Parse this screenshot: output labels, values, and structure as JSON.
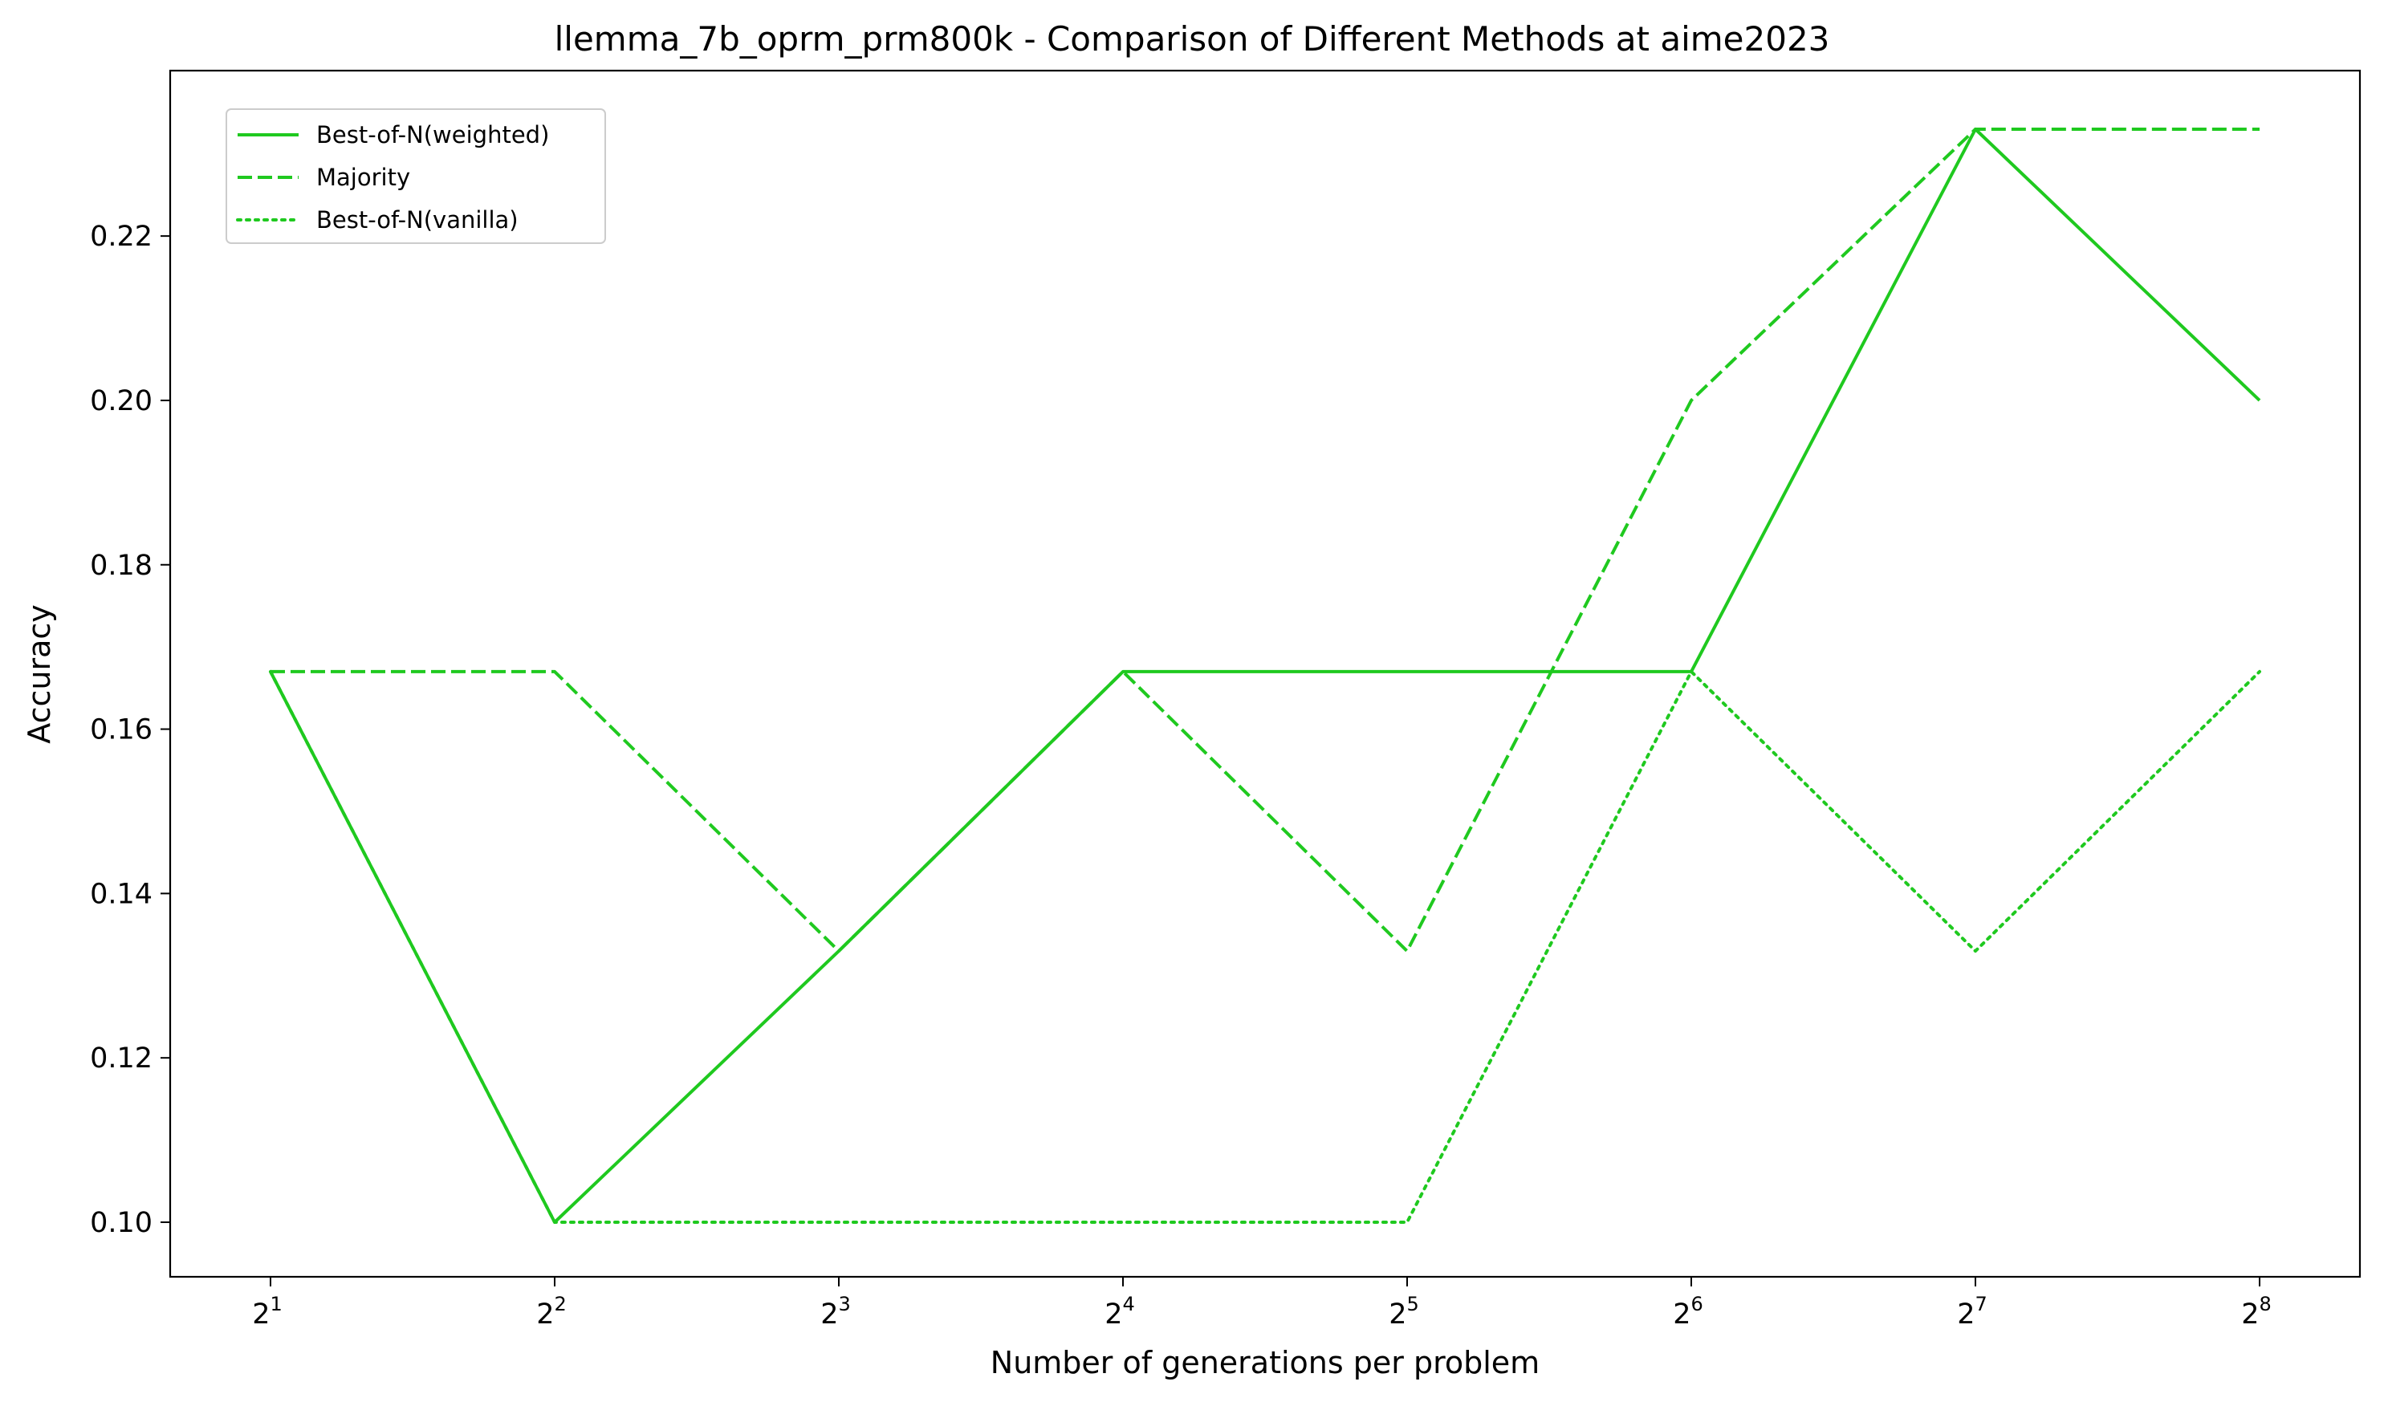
{
  "chart_data": {
    "type": "line",
    "title": "llemma_7b_oprm_prm800k - Comparison of Different Methods at aime2023",
    "xlabel": "Number of generations per problem",
    "ylabel": "Accuracy",
    "x_scale": "log2",
    "x": [
      2,
      4,
      8,
      16,
      32,
      64,
      128,
      256
    ],
    "x_tick_labels": [
      {
        "base": "2",
        "exp": "1"
      },
      {
        "base": "2",
        "exp": "2"
      },
      {
        "base": "2",
        "exp": "3"
      },
      {
        "base": "2",
        "exp": "4"
      },
      {
        "base": "2",
        "exp": "5"
      },
      {
        "base": "2",
        "exp": "6"
      },
      {
        "base": "2",
        "exp": "7"
      },
      {
        "base": "2",
        "exp": "8"
      }
    ],
    "y_ticks": [
      "0.10",
      "0.12",
      "0.14",
      "0.16",
      "0.18",
      "0.20",
      "0.22"
    ],
    "ylim": [
      0.0933,
      0.24
    ],
    "grid": false,
    "legend_position": "upper-left",
    "series": [
      {
        "name": "Best-of-N(weighted)",
        "style": "solid",
        "color": "#1fc91f",
        "values": [
          0.167,
          0.1,
          0.133,
          0.167,
          0.167,
          0.167,
          0.233,
          0.2
        ]
      },
      {
        "name": "Majority",
        "style": "dashed",
        "color": "#1fc91f",
        "values": [
          0.167,
          0.167,
          0.133,
          0.167,
          0.133,
          0.2,
          0.233,
          0.233
        ]
      },
      {
        "name": "Best-of-N(vanilla)",
        "style": "dotted",
        "color": "#1fc91f",
        "values": [
          0.167,
          0.1,
          0.1,
          0.1,
          0.1,
          0.167,
          0.133,
          0.167
        ]
      }
    ]
  }
}
